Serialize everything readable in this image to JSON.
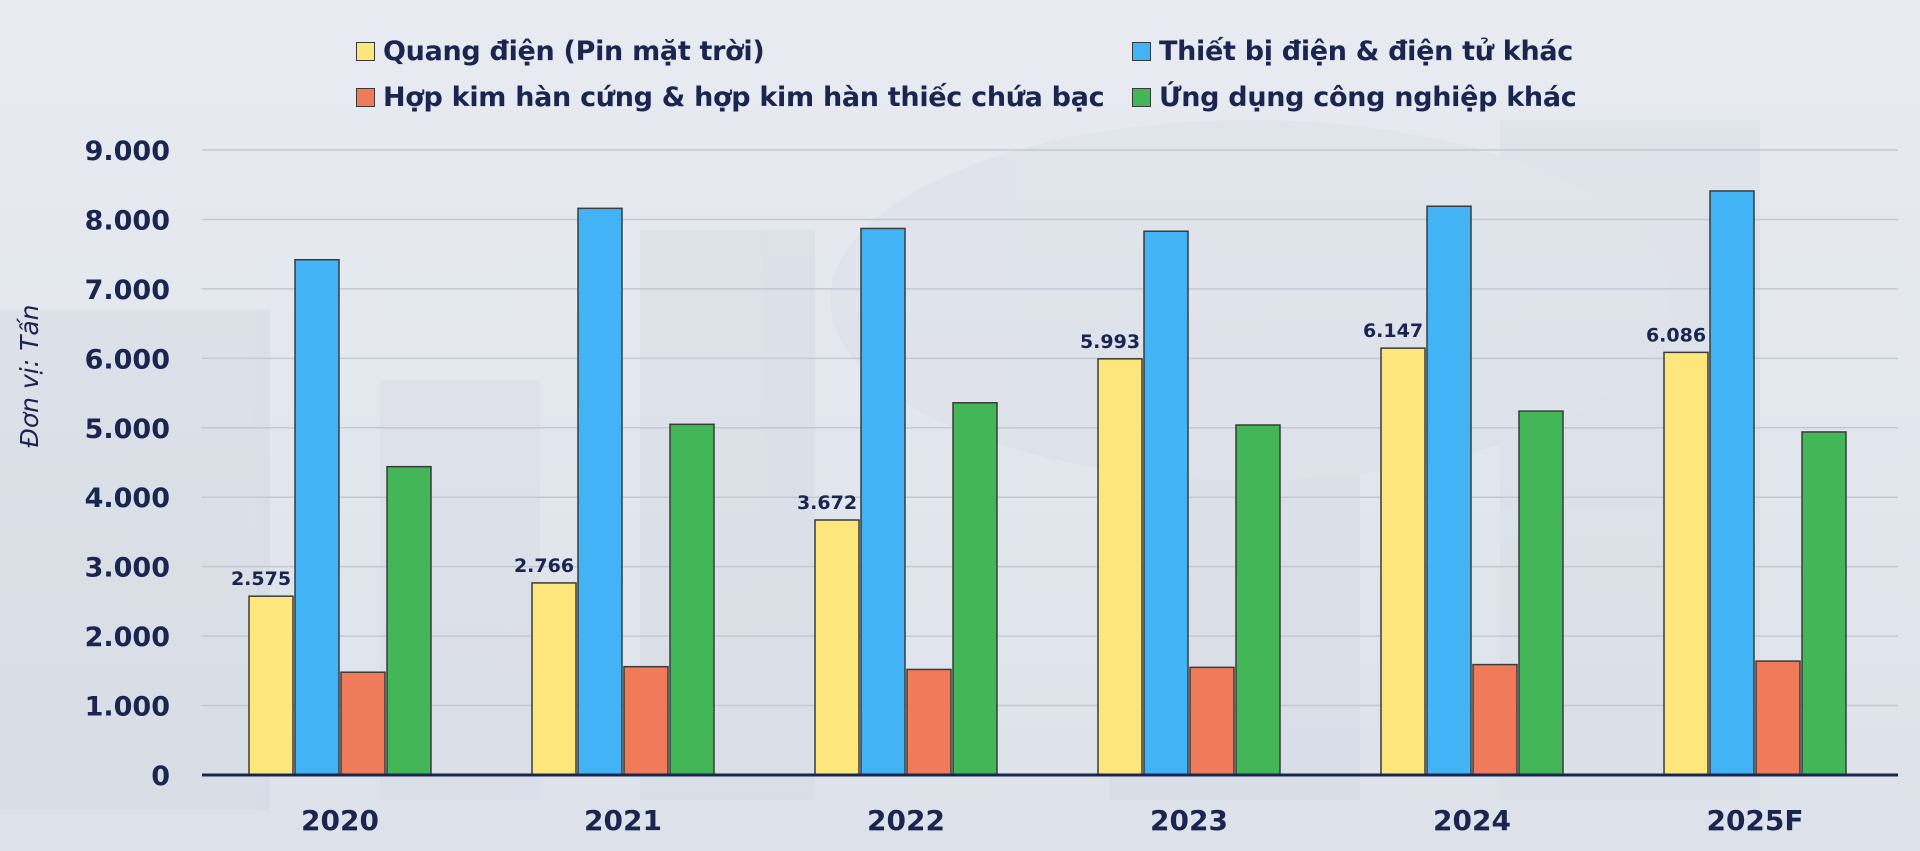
{
  "chart_data": {
    "type": "bar",
    "ylabel": "Đơn vị: Tấn",
    "ylim": [
      0,
      9000
    ],
    "yticks": [
      0,
      1000,
      2000,
      3000,
      4000,
      5000,
      6000,
      7000,
      8000,
      9000
    ],
    "ytick_labels": [
      "0",
      "1.000",
      "2.000",
      "3.000",
      "4.000",
      "5.000",
      "6.000",
      "7.000",
      "8.000",
      "9.000"
    ],
    "grid": true,
    "legend_position": "top",
    "categories": [
      "2020",
      "2021",
      "2022",
      "2023",
      "2024",
      "2025F"
    ],
    "series": [
      {
        "name": "Quang điện (Pin mặt trời)",
        "color": "#fde77c",
        "values": [
          2575,
          2766,
          3672,
          5993,
          6147,
          6086
        ],
        "data_labels": [
          "2.575",
          "2.766",
          "3.672",
          "5.993",
          "6.147",
          "6.086"
        ]
      },
      {
        "name": "Thiết bị điện & điện tử khác",
        "color": "#42b4f6",
        "values": [
          7420,
          8160,
          7870,
          7830,
          8190,
          8410
        ],
        "data_labels": []
      },
      {
        "name": "Hợp kim hàn cứng & hợp kim hàn thiếc chứa bạc",
        "color": "#f07b5a",
        "values": [
          1480,
          1560,
          1520,
          1550,
          1590,
          1640
        ],
        "data_labels": []
      },
      {
        "name": "Ứng dụng công nghiệp khác",
        "color": "#43b657",
        "values": [
          4440,
          5050,
          5360,
          5040,
          5240,
          4940
        ],
        "data_labels": []
      }
    ]
  }
}
